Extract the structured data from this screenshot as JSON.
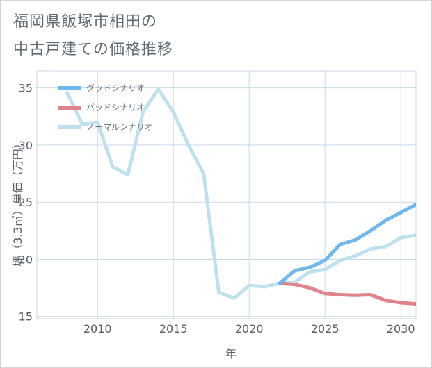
{
  "title": {
    "line1": "福岡県飯塚市相田の",
    "line2": "中古戸建ての価格推移"
  },
  "colors": {
    "good": "#6cb8ef",
    "bad": "#e0848c",
    "normal": "#bfe0ee",
    "grid": "#c9d9e6"
  },
  "chart_data": {
    "type": "line",
    "xlabel": "年",
    "ylabel": "坪（3.3㎡）単価（万円）",
    "xlim": [
      2006,
      2031
    ],
    "ylim": [
      14.8,
      36.5
    ],
    "xticks": [
      2010,
      2015,
      2020,
      2025,
      2030
    ],
    "yticks": [
      15,
      20,
      25,
      30,
      35
    ],
    "grid": true,
    "legend_position": "top-left",
    "series": [
      {
        "name": "グッドシナリオ",
        "key": "good",
        "x": [
          2022,
          2023,
          2024,
          2025,
          2026,
          2027,
          2028,
          2029,
          2030,
          2031
        ],
        "y": [
          17.9,
          19.0,
          19.3,
          19.9,
          21.3,
          21.7,
          22.5,
          23.4,
          24.1,
          24.8
        ]
      },
      {
        "name": "バッドシナリオ",
        "key": "bad",
        "x": [
          2022,
          2023,
          2024,
          2025,
          2026,
          2027,
          2028,
          2029,
          2030,
          2031
        ],
        "y": [
          17.9,
          17.8,
          17.5,
          17.0,
          16.9,
          16.85,
          16.9,
          16.4,
          16.2,
          16.1
        ]
      },
      {
        "name": "ノーマルシナリオ",
        "key": "normal",
        "x": [
          2008,
          2009,
          2010,
          2011,
          2012,
          2013,
          2014,
          2015,
          2016,
          2017,
          2018,
          2019,
          2020,
          2021,
          2022,
          2023,
          2024,
          2025,
          2026,
          2027,
          2028,
          2029,
          2030,
          2031
        ],
        "y": [
          34.6,
          31.8,
          32.0,
          28.1,
          27.4,
          32.9,
          34.9,
          32.9,
          30.0,
          27.5,
          17.1,
          16.6,
          17.7,
          17.6,
          17.9,
          18.0,
          18.9,
          19.1,
          19.9,
          20.3,
          20.9,
          21.1,
          21.9,
          22.1
        ]
      }
    ]
  }
}
